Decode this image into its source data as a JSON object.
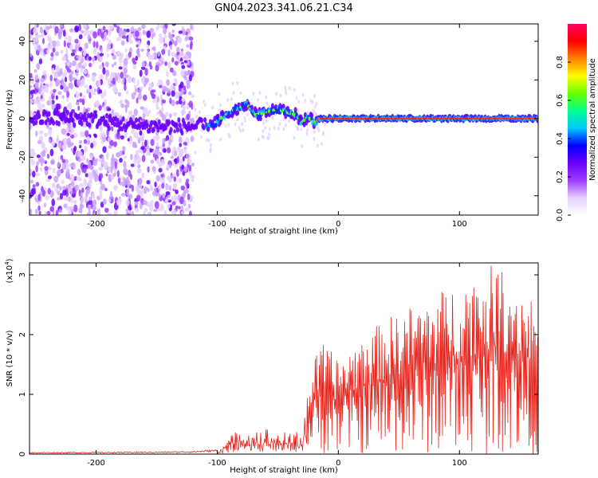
{
  "title": "GN04.2023.341.06.21.C34",
  "chart_data": [
    {
      "type": "heatmap",
      "xlabel": "Height of straight line (km)",
      "ylabel": "Frequency (Hz)",
      "xlim": [
        -255,
        165
      ],
      "ylim": [
        -50,
        49
      ],
      "xticks": [
        -200,
        -100,
        0,
        100
      ],
      "yticks": [
        -40,
        -20,
        0,
        20,
        40
      ],
      "xticklabels": [
        "-200",
        "-100",
        "0",
        "100"
      ],
      "yticklabels": [
        "-40",
        "-20",
        "0",
        "20",
        "40"
      ],
      "colorbar": {
        "label": "Normalized spectral amplitude",
        "range": [
          0,
          1
        ],
        "ticks": [
          0.0,
          0.2,
          0.4,
          0.6,
          0.8
        ],
        "ticklabels": [
          "0.0",
          "0.2",
          "0.4",
          "0.6",
          "0.8"
        ],
        "colors": [
          "#ffffff",
          "#e6d0ff",
          "#9b3cff",
          "#6a00ff",
          "#0000ff",
          "#00c8ff",
          "#00ff90",
          "#66ff00",
          "#ffff00",
          "#ff8000",
          "#ff0000",
          "#ff0066"
        ]
      },
      "ridge": [
        {
          "x": -255,
          "y": 0
        },
        {
          "x": -210,
          "y": 0
        },
        {
          "x": -165,
          "y": -4
        },
        {
          "x": -125,
          "y": -4
        },
        {
          "x": -105,
          "y": -4
        },
        {
          "x": -95,
          "y": 1
        },
        {
          "x": -85,
          "y": 5
        },
        {
          "x": -75,
          "y": 7
        },
        {
          "x": -68,
          "y": 2
        },
        {
          "x": -60,
          "y": 3
        },
        {
          "x": -50,
          "y": 5
        },
        {
          "x": -42,
          "y": 3
        },
        {
          "x": -35,
          "y": 2
        },
        {
          "x": -30,
          "y": -2
        },
        {
          "x": -25,
          "y": 1
        },
        {
          "x": -20,
          "y": -2
        },
        {
          "x": -15,
          "y": 0
        },
        {
          "x": 0,
          "y": 0
        },
        {
          "x": 50,
          "y": 0
        },
        {
          "x": 100,
          "y": 0
        },
        {
          "x": 165,
          "y": 0
        }
      ]
    },
    {
      "type": "line",
      "xlabel": "Height of straight line (km)",
      "ylabel": "SNR (10 * v/v)",
      "yscale_label": "(x10",
      "yscale_exponent": "4",
      "yscale_suffix": ")",
      "xlim": [
        -255,
        165
      ],
      "ylim": [
        0,
        3.2
      ],
      "xticks": [
        -200,
        -100,
        0,
        100
      ],
      "yticks": [
        0,
        1,
        2,
        3
      ],
      "xticklabels": [
        "-200",
        "-100",
        "0",
        "100"
      ],
      "yticklabels": [
        "0",
        "1",
        "2",
        "3"
      ],
      "color": "#e8241c",
      "envelope": [
        {
          "x": -255,
          "y": 0.03
        },
        {
          "x": -150,
          "y": 0.04
        },
        {
          "x": -120,
          "y": 0.05
        },
        {
          "x": -100,
          "y": 0.08
        },
        {
          "x": -90,
          "y": 0.3
        },
        {
          "x": -80,
          "y": 0.45
        },
        {
          "x": -60,
          "y": 0.45
        },
        {
          "x": -50,
          "y": 0.4
        },
        {
          "x": -40,
          "y": 0.35
        },
        {
          "x": -30,
          "y": 0.5
        },
        {
          "x": -25,
          "y": 1.2
        },
        {
          "x": -15,
          "y": 1.9
        },
        {
          "x": 0,
          "y": 1.6
        },
        {
          "x": 20,
          "y": 2.0
        },
        {
          "x": 50,
          "y": 2.4
        },
        {
          "x": 80,
          "y": 2.7
        },
        {
          "x": 100,
          "y": 2.9
        },
        {
          "x": 130,
          "y": 3.2
        },
        {
          "x": 165,
          "y": 2.6
        }
      ]
    }
  ]
}
